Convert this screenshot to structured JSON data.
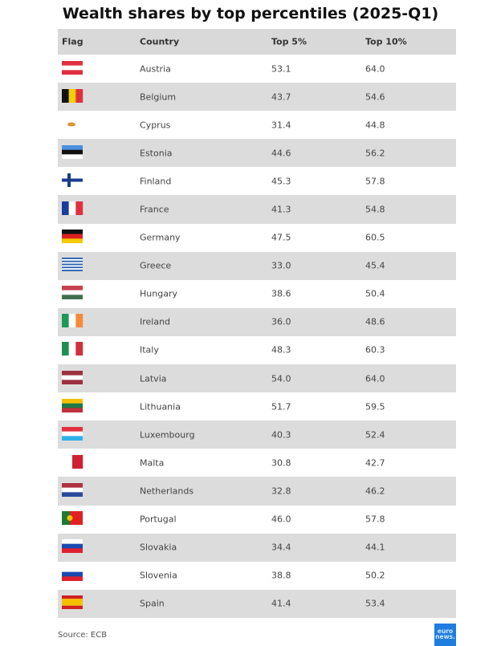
{
  "chart_data": {
    "type": "table",
    "title": "Wealth shares by top percentiles (2025-Q1)",
    "columns": [
      "Flag",
      "Country",
      "Top 5%",
      "Top 10%"
    ],
    "rows": [
      {
        "country": "Austria",
        "top5": "53.1",
        "top10": "64.0",
        "flag": {
          "dir": "h",
          "colors": [
            "#e03040",
            "#ffffff",
            "#e03040"
          ]
        }
      },
      {
        "country": "Belgium",
        "top5": "43.7",
        "top10": "54.6",
        "flag": {
          "dir": "v",
          "colors": [
            "#111111",
            "#f5d000",
            "#e03040"
          ]
        }
      },
      {
        "country": "Cyprus",
        "top5": "31.4",
        "top10": "44.8",
        "flag": {
          "dir": "cyprus",
          "colors": [
            "#ffffff",
            "#e09030"
          ]
        }
      },
      {
        "country": "Estonia",
        "top5": "44.6",
        "top10": "56.2",
        "flag": {
          "dir": "h",
          "colors": [
            "#4a8fe0",
            "#111111",
            "#ffffff"
          ]
        }
      },
      {
        "country": "Finland",
        "top5": "45.3",
        "top10": "57.8",
        "flag": {
          "dir": "cross",
          "colors": [
            "#ffffff",
            "#1a3c8c"
          ]
        }
      },
      {
        "country": "France",
        "top5": "41.3",
        "top10": "54.8",
        "flag": {
          "dir": "v",
          "colors": [
            "#1a3c9c",
            "#ffffff",
            "#e03040"
          ]
        }
      },
      {
        "country": "Germany",
        "top5": "47.5",
        "top10": "60.5",
        "flag": {
          "dir": "h",
          "colors": [
            "#111111",
            "#dd2020",
            "#f5c800"
          ]
        }
      },
      {
        "country": "Greece",
        "top5": "33.0",
        "top10": "45.4",
        "flag": {
          "dir": "h",
          "colors": [
            "#2a60b0",
            "#ffffff",
            "#2a60b0",
            "#ffffff",
            "#2a60b0",
            "#ffffff",
            "#2a60b0",
            "#ffffff",
            "#2a60b0"
          ]
        }
      },
      {
        "country": "Hungary",
        "top5": "38.6",
        "top10": "50.4",
        "flag": {
          "dir": "h",
          "colors": [
            "#c84050",
            "#ffffff",
            "#3f7050"
          ]
        }
      },
      {
        "country": "Ireland",
        "top5": "36.0",
        "top10": "48.6",
        "flag": {
          "dir": "v",
          "colors": [
            "#1c9a55",
            "#ffffff",
            "#f58a3c"
          ]
        }
      },
      {
        "country": "Italy",
        "top5": "48.3",
        "top10": "60.3",
        "flag": {
          "dir": "v",
          "colors": [
            "#1c9050",
            "#ffffff",
            "#d03040"
          ]
        }
      },
      {
        "country": "Latvia",
        "top5": "54.0",
        "top10": "64.0",
        "flag": {
          "dir": "h",
          "colors": [
            "#9c3040",
            "#ffffff",
            "#9c3040"
          ]
        }
      },
      {
        "country": "Lithuania",
        "top5": "51.7",
        "top10": "59.5",
        "flag": {
          "dir": "h",
          "colors": [
            "#f5c000",
            "#1c7a45",
            "#c0303a"
          ]
        }
      },
      {
        "country": "Luxembourg",
        "top5": "40.3",
        "top10": "52.4",
        "flag": {
          "dir": "h",
          "colors": [
            "#e03040",
            "#ffffff",
            "#30b0e8"
          ]
        }
      },
      {
        "country": "Malta",
        "top5": "30.8",
        "top10": "42.7",
        "flag": {
          "dir": "v",
          "colors": [
            "#ffffff",
            "#d02030"
          ]
        }
      },
      {
        "country": "Netherlands",
        "top5": "32.8",
        "top10": "46.2",
        "flag": {
          "dir": "h",
          "colors": [
            "#b03040",
            "#ffffff",
            "#2a4a9c"
          ]
        }
      },
      {
        "country": "Portugal",
        "top5": "46.0",
        "top10": "57.8",
        "flag": {
          "dir": "pt",
          "colors": [
            "#1c7a35",
            "#e02020",
            "#f5c000"
          ]
        }
      },
      {
        "country": "Slovakia",
        "top5": "34.4",
        "top10": "44.1",
        "flag": {
          "dir": "h",
          "colors": [
            "#ffffff",
            "#1a4ab0",
            "#e02030"
          ]
        }
      },
      {
        "country": "Slovenia",
        "top5": "38.8",
        "top10": "50.2",
        "flag": {
          "dir": "h",
          "colors": [
            "#ffffff",
            "#1a4ab0",
            "#e02030"
          ]
        }
      },
      {
        "country": "Spain",
        "top5": "41.4",
        "top10": "53.4",
        "flag": {
          "dir": "es",
          "colors": [
            "#d02020",
            "#f5c000",
            "#d02020"
          ]
        }
      }
    ]
  },
  "footer": {
    "source": "Source: ECB",
    "logo": "euro news."
  }
}
